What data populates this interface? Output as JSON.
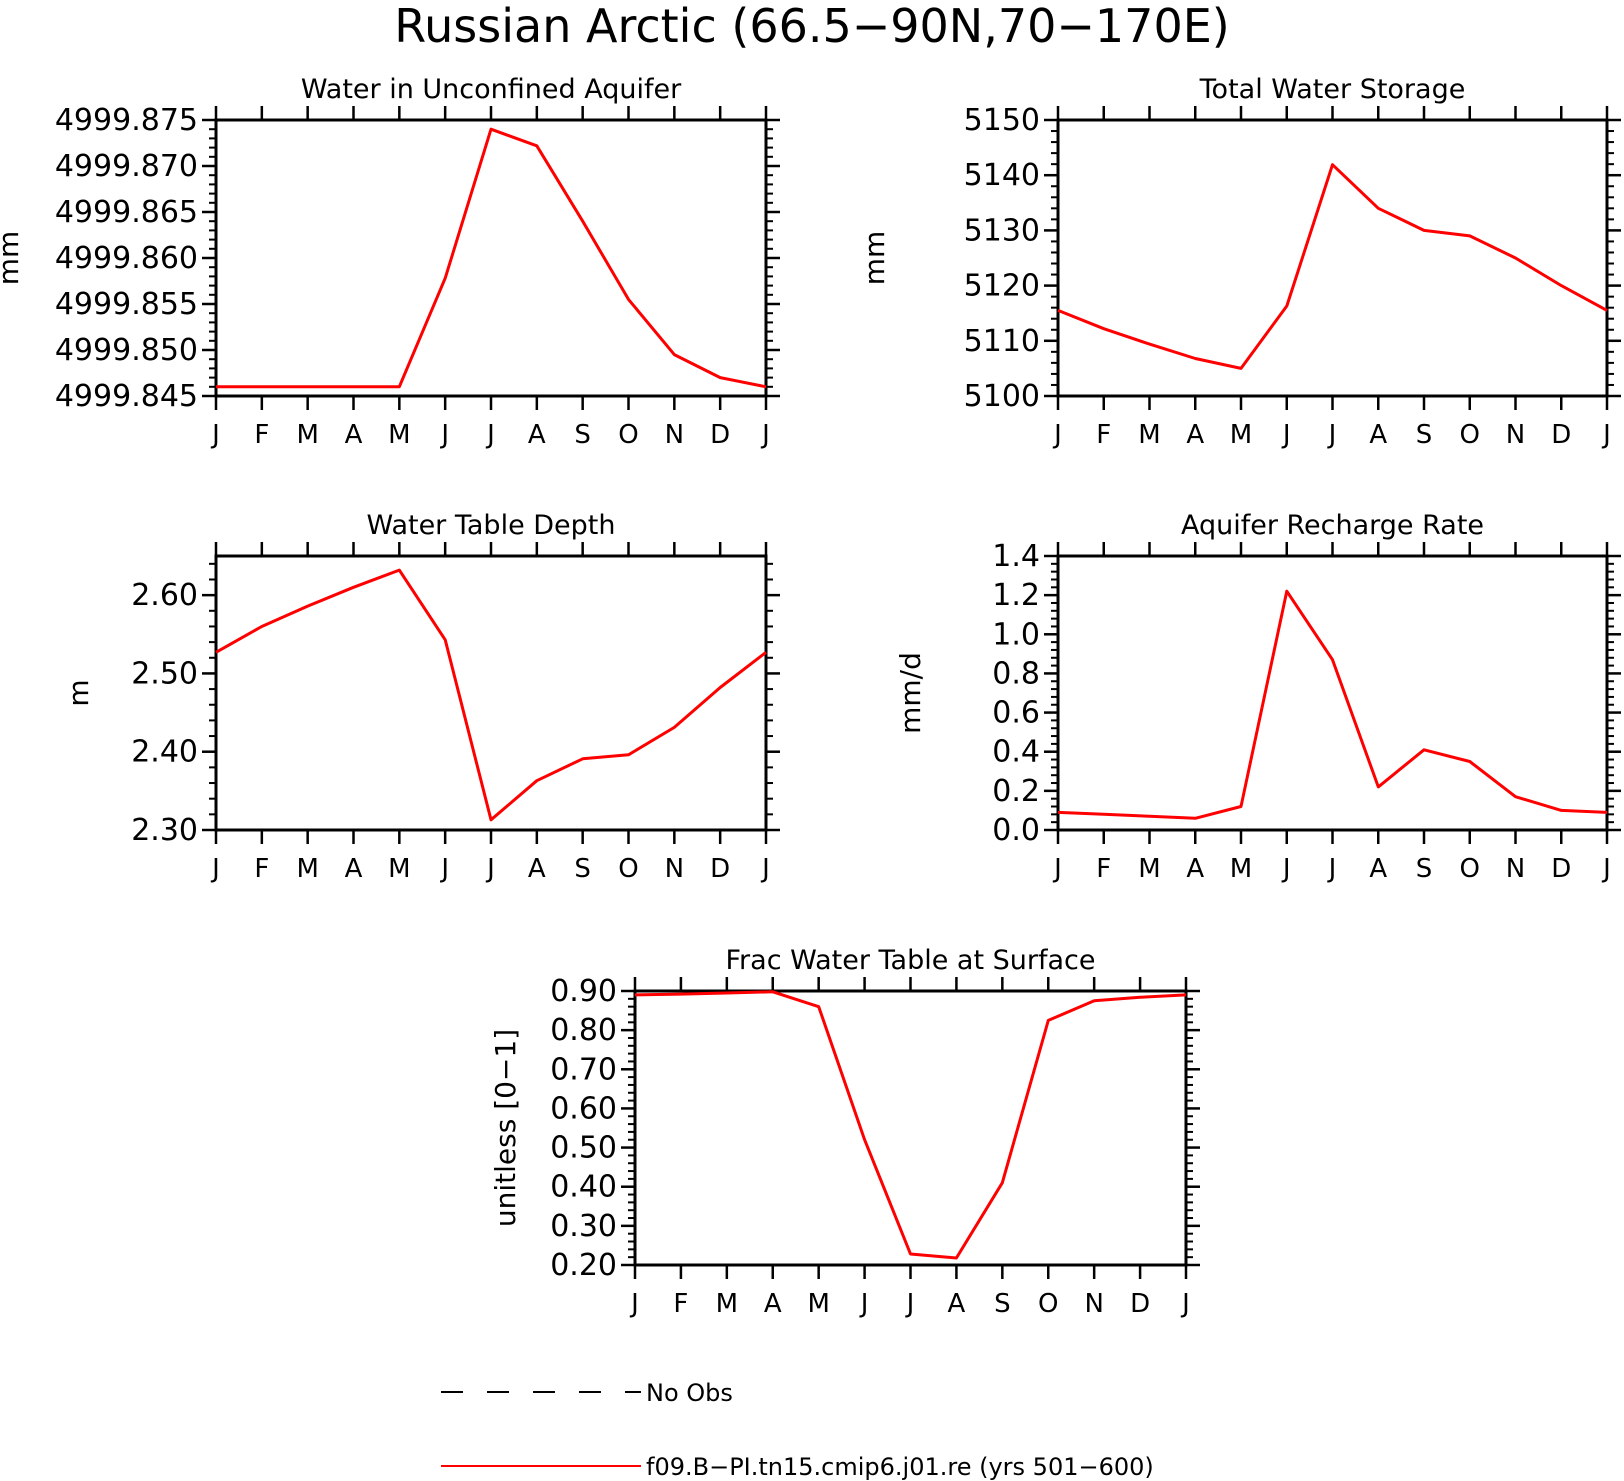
{
  "title": "Russian Arctic (66.5−90N,70−170E)",
  "months": [
    "J",
    "F",
    "M",
    "A",
    "M",
    "J",
    "J",
    "A",
    "S",
    "O",
    "N",
    "D",
    "J"
  ],
  "line_color": "#ff0000",
  "legend": {
    "items": [
      {
        "label": "No Obs",
        "style": "dashed",
        "color": "#000000"
      },
      {
        "label": "f09.B−PI.tn15.cmip6.j01.re (yrs 501−600)",
        "style": "solid",
        "color": "#ff0000"
      }
    ]
  },
  "chart_data": [
    {
      "type": "line",
      "title": "Water in Unconfined Aquifer",
      "ylabel": "mm",
      "xlabel": "",
      "ylim": [
        4999.845,
        4999.875
      ],
      "yticks": [
        4999.845,
        4999.85,
        4999.855,
        4999.86,
        4999.865,
        4999.87,
        4999.875
      ],
      "ytick_labels": [
        "4999.845",
        "4999.850",
        "4999.855",
        "4999.860",
        "4999.865",
        "4999.870",
        "4999.875"
      ],
      "series": [
        {
          "values": [
            4999.846,
            4999.846,
            4999.846,
            4999.846,
            4999.846,
            4999.8578,
            4999.874,
            4999.8722,
            4999.864,
            4999.8555,
            4999.8495,
            4999.847,
            4999.846
          ]
        }
      ]
    },
    {
      "type": "line",
      "title": "Total Water Storage",
      "ylabel": "mm",
      "xlabel": "",
      "ylim": [
        5100,
        5150
      ],
      "yticks": [
        5100,
        5110,
        5120,
        5130,
        5140,
        5150
      ],
      "ytick_labels": [
        "5100",
        "5110",
        "5120",
        "5130",
        "5140",
        "5150"
      ],
      "series": [
        {
          "values": [
            5115.5,
            5112.2,
            5109.4,
            5106.8,
            5105.0,
            5116.3,
            5141.9,
            5134.0,
            5130.0,
            5129.0,
            5125.0,
            5120.0,
            5115.5
          ]
        }
      ]
    },
    {
      "type": "line",
      "title": "Water Table Depth",
      "ylabel": "m",
      "xlabel": "",
      "ylim": [
        2.3,
        2.65
      ],
      "yticks": [
        2.3,
        2.4,
        2.5,
        2.6
      ],
      "ytick_labels": [
        "2.30",
        "2.40",
        "2.50",
        "2.60"
      ],
      "series": [
        {
          "values": [
            2.527,
            2.56,
            2.586,
            2.61,
            2.632,
            2.543,
            2.313,
            2.363,
            2.391,
            2.396,
            2.431,
            2.482,
            2.527
          ]
        }
      ]
    },
    {
      "type": "line",
      "title": "Aquifer Recharge Rate",
      "ylabel": "mm/d",
      "xlabel": "",
      "ylim": [
        0.0,
        1.4
      ],
      "yticks": [
        0.0,
        0.2,
        0.4,
        0.6,
        0.8,
        1.0,
        1.2,
        1.4
      ],
      "ytick_labels": [
        "0.0",
        "0.2",
        "0.4",
        "0.6",
        "0.8",
        "1.0",
        "1.2",
        "1.4"
      ],
      "series": [
        {
          "values": [
            0.09,
            0.08,
            0.07,
            0.06,
            0.12,
            1.22,
            0.87,
            0.22,
            0.41,
            0.35,
            0.17,
            0.1,
            0.09
          ]
        }
      ]
    },
    {
      "type": "line",
      "title": "Frac Water Table at Surface",
      "ylabel": "unitless [0−1]",
      "xlabel": "",
      "ylim": [
        0.2,
        0.9
      ],
      "yticks": [
        0.2,
        0.3,
        0.4,
        0.5,
        0.6,
        0.7,
        0.8,
        0.9
      ],
      "ytick_labels": [
        "0.20",
        "0.30",
        "0.40",
        "0.50",
        "0.60",
        "0.70",
        "0.80",
        "0.90"
      ],
      "series": [
        {
          "values": [
            0.89,
            0.892,
            0.895,
            0.898,
            0.86,
            0.52,
            0.228,
            0.218,
            0.41,
            0.825,
            0.875,
            0.884,
            0.89
          ]
        }
      ]
    }
  ]
}
